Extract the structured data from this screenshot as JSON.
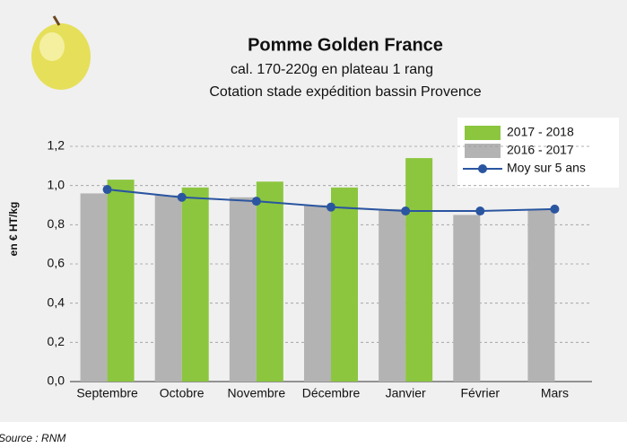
{
  "chart_data": {
    "type": "bar",
    "title": "Pomme Golden France",
    "subtitle": [
      "cal. 170-220g en plateau 1 rang",
      "Cotation stade expédition bassin Provence"
    ],
    "y_label": "en € HT/kg",
    "source": "Source : RNM",
    "categories": [
      "Septembre",
      "Octobre",
      "Novembre",
      "Décembre",
      "Janvier",
      "Février",
      "Mars"
    ],
    "series": [
      {
        "name": "2016 - 2017",
        "type": "bar",
        "color": "#b3b3b3",
        "values": [
          0.96,
          0.95,
          0.94,
          0.9,
          0.88,
          0.85,
          0.88
        ]
      },
      {
        "name": "2017 - 2018",
        "type": "bar",
        "color": "#8cc63f",
        "values": [
          1.03,
          0.99,
          1.02,
          0.99,
          1.14,
          null,
          null
        ]
      },
      {
        "name": "Moy sur 5 ans",
        "type": "line",
        "color": "#2a55a0",
        "values": [
          0.98,
          0.94,
          0.92,
          0.89,
          0.87,
          0.87,
          0.88
        ]
      }
    ],
    "legend_order": [
      1,
      0,
      2
    ],
    "ylim": [
      0,
      1.2
    ],
    "yticks": [
      {
        "value": 0,
        "label": "0,0"
      },
      {
        "value": 0.2,
        "label": "0,2"
      },
      {
        "value": 0.4,
        "label": "0,4"
      },
      {
        "value": 0.6,
        "label": "0,6"
      },
      {
        "value": 0.8,
        "label": "0,8"
      },
      {
        "value": 1.0,
        "label": "1,0"
      },
      {
        "value": 1.2,
        "label": "1,2"
      }
    ],
    "grid": true
  }
}
